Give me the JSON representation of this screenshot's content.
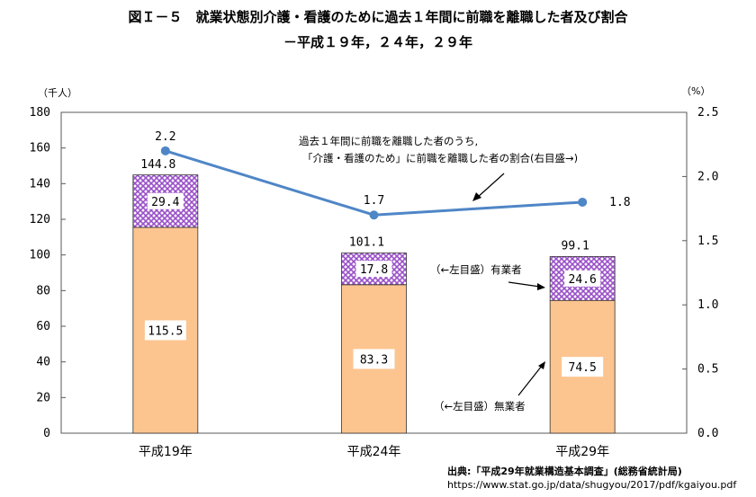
{
  "title": "図Ｉ－５　就業状態別介護・看護のために過去１年間に前職を離職した者及び割合",
  "subtitle": "－平成１９年，２４年，２９年",
  "source_line1": "出典:「平成29年就業構造基本調査」(総務省統計局)",
  "source_line2": "https://www.stat.go.jp/data/shugyou/2017/pdf/kgaiyou.pdf",
  "colors": {
    "unemployed": "#fcc590",
    "employed": "#9a50c8",
    "line": "#4f86c6",
    "axis": "#595959"
  },
  "chart_data": {
    "type": "bar",
    "stacked": true,
    "categories": [
      "平成19年",
      "平成24年",
      "平成29年"
    ],
    "left_axis": {
      "unit": "（千人）",
      "ylim": [
        0,
        180
      ],
      "ticks": [
        "0",
        "20",
        "40",
        "60",
        "80",
        "100",
        "120",
        "140",
        "160",
        "180"
      ]
    },
    "right_axis": {
      "unit": "（%）",
      "ylim": [
        0.0,
        2.5
      ],
      "ticks": [
        "0.0",
        "0.5",
        "1.0",
        "1.5",
        "2.0",
        "2.5"
      ]
    },
    "series": [
      {
        "name": "（←左目盛）無業者",
        "values": [
          115.5,
          83.3,
          74.5
        ],
        "labels": [
          "115.5",
          "83.3",
          "74.5"
        ]
      },
      {
        "name": "（←左目盛）有業者",
        "values": [
          29.4,
          17.8,
          24.6
        ],
        "labels": [
          "29.4",
          "17.8",
          "24.6"
        ]
      }
    ],
    "totals": [
      144.8,
      101.1,
      99.1
    ],
    "total_labels": [
      "144.8",
      "101.1",
      "99.1"
    ],
    "line": {
      "values": [
        2.2,
        1.7,
        1.8
      ],
      "labels": [
        "2.2",
        "1.7",
        "1.8"
      ],
      "annotation_line1": "過去１年間に前職を離職した者のうち,",
      "annotation_line2": "「介護・看護のため」に前職を離職した者の割合(右目盛→)"
    },
    "grid": false
  }
}
